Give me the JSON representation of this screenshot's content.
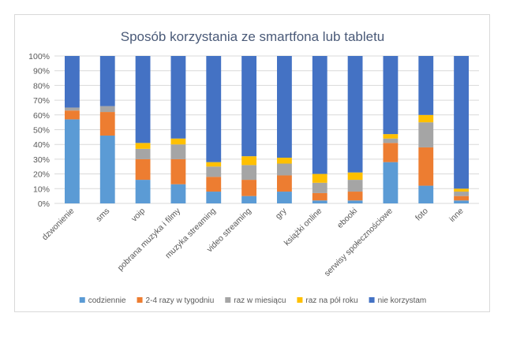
{
  "chart_data": {
    "type": "bar",
    "stacked": true,
    "percent": true,
    "title": "Sposób korzystania ze smartfona lub tabletu",
    "xlabel": "",
    "ylabel": "",
    "ylim": [
      0,
      100
    ],
    "yticks": [
      "0%",
      "10%",
      "20%",
      "30%",
      "40%",
      "50%",
      "60%",
      "70%",
      "80%",
      "90%",
      "100%"
    ],
    "categories": [
      "dzwonienie",
      "sms",
      "voip",
      "pobrana muzyka i filmy",
      "muzyka streaming",
      "video streaming",
      "gry",
      "książki online",
      "ebooki",
      "serwisy społecznościowe",
      "foto",
      "inne"
    ],
    "series": [
      {
        "name": "codziennie",
        "color": "#5b9bd5",
        "values": [
          57,
          46,
          16,
          13,
          8,
          5,
          8,
          2,
          2,
          28,
          12,
          2
        ]
      },
      {
        "name": "2-4 razy w tygodniu",
        "color": "#ed7d31",
        "values": [
          6,
          16,
          14,
          17,
          10,
          11,
          11,
          5,
          6,
          13,
          26,
          3
        ]
      },
      {
        "name": "raz w miesiącu",
        "color": "#a5a5a5",
        "values": [
          2,
          4,
          7,
          10,
          7,
          10,
          8,
          7,
          8,
          3,
          17,
          3
        ]
      },
      {
        "name": "raz na pół roku",
        "color": "#ffc000",
        "values": [
          0,
          0,
          4,
          4,
          3,
          6,
          4,
          6,
          5,
          3,
          5,
          2
        ]
      },
      {
        "name": "nie korzystam",
        "color": "#4472c4",
        "values": [
          35,
          34,
          59,
          56,
          72,
          68,
          69,
          80,
          79,
          53,
          40,
          90
        ]
      }
    ],
    "legend_position": "bottom",
    "grid": true
  }
}
